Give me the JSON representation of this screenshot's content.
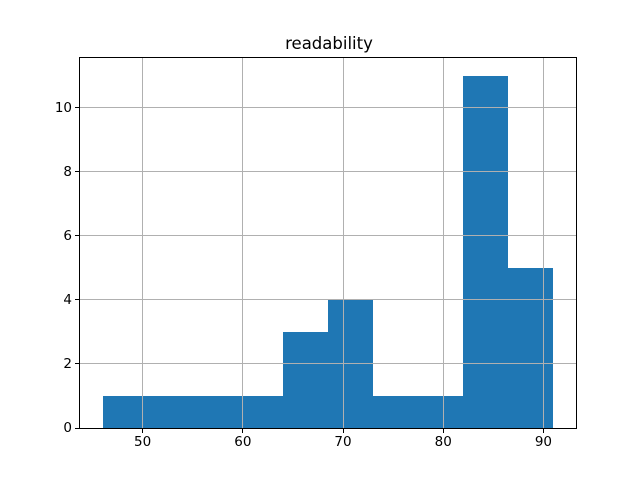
{
  "figure": {
    "background": "#ffffff"
  },
  "chart_data": {
    "type": "bar",
    "subtype": "histogram",
    "title": "readability",
    "xlabel": "",
    "ylabel": "",
    "bin_edges": [
      46,
      50.5,
      55,
      59.5,
      64,
      68.5,
      73,
      77.5,
      82,
      86.5,
      91
    ],
    "counts": [
      1,
      1,
      1,
      1,
      3,
      4,
      1,
      1,
      11,
      5
    ],
    "x_ticks": [
      50,
      60,
      70,
      80,
      90
    ],
    "y_ticks": [
      0,
      2,
      4,
      6,
      8,
      10
    ],
    "xlim": [
      43.75,
      93.25
    ],
    "ylim": [
      0,
      11.55
    ],
    "grid": true,
    "grid_over_bars": true,
    "legend": "none",
    "bar_color": "#1f77b4",
    "grid_color": "#b0b0b0",
    "axis_color": "#000000",
    "text_color": "#000000"
  }
}
